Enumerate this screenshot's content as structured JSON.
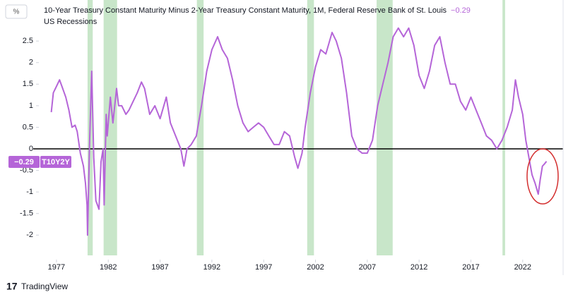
{
  "chart_data": {
    "type": "line",
    "unit_label": "%",
    "title": "10-Year Treasury Constant Maturity Minus 2-Year Treasury Constant Maturity, 1M, Federal Reserve Bank of St. Louis",
    "last_value": -0.29,
    "last_value_label": "−0.29",
    "recessions": {
      "name": "US Recessions",
      "color": "#c8e6c9",
      "ranges": [
        [
          1980.0,
          1980.5
        ],
        [
          1981.55,
          1982.85
        ],
        [
          1990.55,
          1991.2
        ],
        [
          2001.2,
          2001.85
        ],
        [
          2007.9,
          2009.45
        ],
        [
          2020.05,
          2020.3
        ]
      ]
    },
    "x": [
      1976.5,
      1976.7,
      1977.0,
      1977.3,
      1977.6,
      1977.9,
      1978.2,
      1978.5,
      1978.8,
      1979.0,
      1979.3,
      1979.6,
      1979.8,
      1979.95,
      1980.0,
      1980.2,
      1980.4,
      1980.6,
      1980.8,
      1981.1,
      1981.3,
      1981.5,
      1981.6,
      1981.8,
      1981.9,
      1982.2,
      1982.45,
      1982.8,
      1983.0,
      1983.3,
      1983.7,
      1984.0,
      1984.4,
      1984.8,
      1985.2,
      1985.5,
      1986.0,
      1986.5,
      1987.0,
      1987.6,
      1988.0,
      1988.5,
      1989.0,
      1989.3,
      1989.6,
      1990.0,
      1990.5,
      1991.0,
      1991.5,
      1992.0,
      1992.55,
      1993.0,
      1993.5,
      1994.0,
      1994.5,
      1995.0,
      1995.5,
      1996.0,
      1996.5,
      1997.0,
      1997.5,
      1998.0,
      1998.5,
      1999.0,
      1999.5,
      2000.0,
      2000.3,
      2000.7,
      2001.0,
      2001.5,
      2002.0,
      2002.5,
      2003.0,
      2003.6,
      2004.0,
      2004.5,
      2005.0,
      2005.5,
      2006.0,
      2006.5,
      2007.0,
      2007.5,
      2008.0,
      2008.5,
      2009.0,
      2009.5,
      2010.0,
      2010.5,
      2011.0,
      2011.5,
      2012.0,
      2012.5,
      2013.0,
      2013.5,
      2014.0,
      2014.5,
      2015.0,
      2015.5,
      2016.0,
      2016.5,
      2017.0,
      2017.5,
      2018.0,
      2018.5,
      2019.0,
      2019.5,
      2020.0,
      2020.5,
      2021.0,
      2021.3,
      2021.6,
      2022.0,
      2022.3,
      2022.6,
      2022.9,
      2023.2,
      2023.5,
      2023.7,
      2023.9,
      2024.1,
      2024.3
    ],
    "series": [
      {
        "name": "T10Y2Y",
        "color": "#b565d8",
        "values": [
          0.85,
          1.3,
          1.45,
          1.6,
          1.4,
          1.2,
          0.9,
          0.5,
          0.55,
          0.4,
          -0.1,
          -0.4,
          -0.8,
          -1.3,
          -2.0,
          0.2,
          1.8,
          -0.2,
          -1.2,
          -1.4,
          -0.3,
          0.0,
          -1.3,
          0.8,
          0.3,
          1.2,
          0.6,
          1.4,
          1.0,
          1.0,
          0.8,
          0.9,
          1.1,
          1.3,
          1.55,
          1.4,
          0.8,
          1.0,
          0.7,
          1.2,
          0.6,
          0.3,
          0.0,
          -0.4,
          0.0,
          0.1,
          0.3,
          1.0,
          1.8,
          2.3,
          2.6,
          2.3,
          2.1,
          1.6,
          1.0,
          0.6,
          0.4,
          0.5,
          0.6,
          0.5,
          0.3,
          0.1,
          0.1,
          0.4,
          0.3,
          -0.2,
          -0.45,
          -0.1,
          0.5,
          1.3,
          1.9,
          2.3,
          2.2,
          2.7,
          2.5,
          2.1,
          1.3,
          0.3,
          0.0,
          -0.1,
          -0.1,
          0.2,
          1.0,
          1.5,
          2.0,
          2.6,
          2.8,
          2.6,
          2.8,
          2.4,
          1.7,
          1.4,
          1.8,
          2.4,
          2.6,
          2.0,
          1.5,
          1.5,
          1.1,
          0.9,
          1.2,
          0.9,
          0.6,
          0.3,
          0.2,
          0.0,
          0.2,
          0.5,
          0.9,
          1.6,
          1.2,
          0.8,
          0.2,
          -0.2,
          -0.6,
          -0.8,
          -1.05,
          -0.7,
          -0.4,
          -0.35,
          -0.29
        ]
      }
    ],
    "baseline": 0,
    "xlim": [
      1975.3,
      2025.9
    ],
    "xticks": [
      1977,
      1982,
      1987,
      1992,
      1997,
      2002,
      2007,
      2012,
      2017,
      2022
    ],
    "ylim": [
      -2.47,
      3.37
    ],
    "yticks": [
      2.5,
      2,
      1.5,
      1,
      0.5,
      0,
      -0.5,
      -1,
      -1.5,
      -2
    ],
    "brand": "TradingView"
  }
}
